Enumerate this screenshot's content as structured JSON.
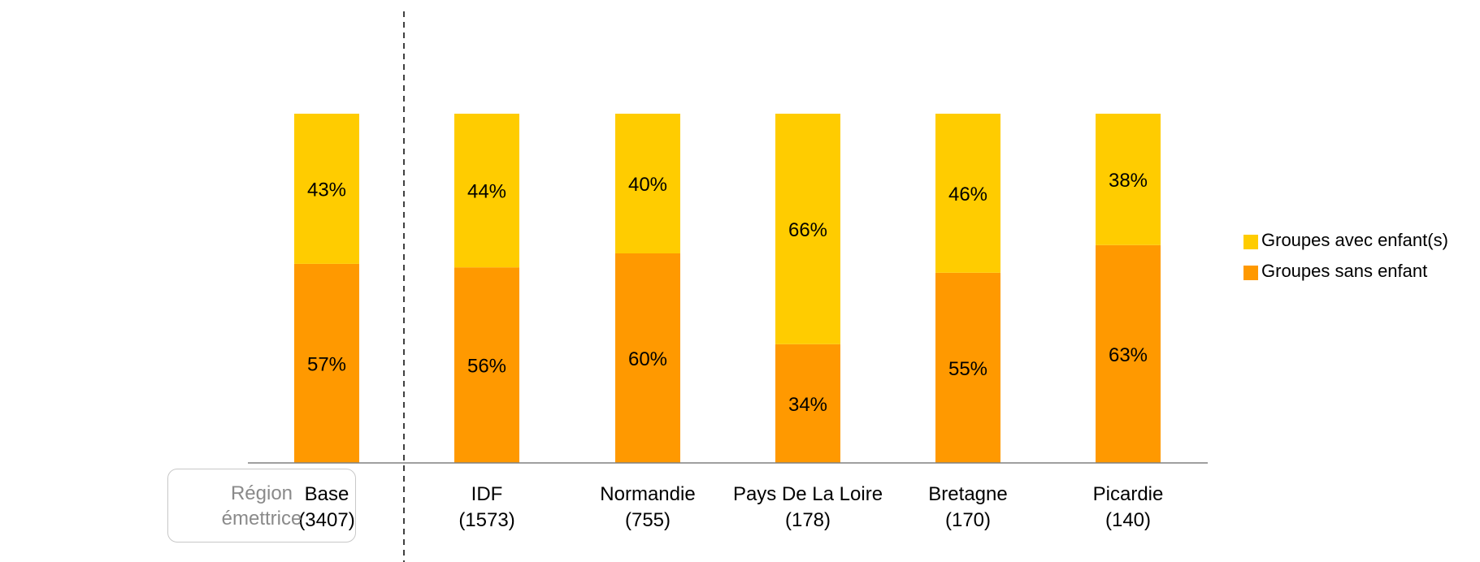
{
  "side_label": {
    "line1": "Région",
    "line2": "émettrice"
  },
  "colors": {
    "avec": "#FFCC00",
    "sans": "#FF9900",
    "axis": "#808080",
    "divider": "#404040"
  },
  "chart_data": {
    "type": "bar",
    "stacked": true,
    "percent": true,
    "categories": [
      {
        "name": "Base",
        "n": "(3407)"
      },
      {
        "name": "IDF",
        "n": "(1573)"
      },
      {
        "name": "Normandie",
        "n": "(755)"
      },
      {
        "name": "Pays De La Loire",
        "n": "(178)"
      },
      {
        "name": "Bretagne",
        "n": "(170)"
      },
      {
        "name": "Picardie",
        "n": "(140)"
      }
    ],
    "series": [
      {
        "name": "Groupes sans enfant",
        "values": [
          57,
          56,
          60,
          34,
          55,
          63
        ],
        "labels": [
          "57%",
          "56%",
          "60%",
          "34%",
          "55%",
          "63%"
        ]
      },
      {
        "name": "Groupes avec enfant(s)",
        "values": [
          43,
          44,
          40,
          66,
          46,
          38
        ],
        "labels": [
          "43%",
          "44%",
          "40%",
          "66%",
          "46%",
          "38%"
        ]
      }
    ],
    "legend": [
      "Groupes avec enfant(s)",
      "Groupes sans enfant"
    ],
    "legend_position": "right",
    "ylim": [
      0,
      100
    ],
    "grid": false
  }
}
